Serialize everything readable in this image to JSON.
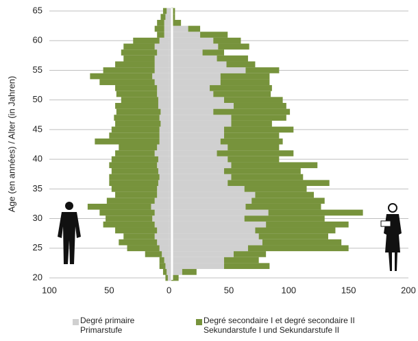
{
  "chart_data": {
    "type": "pyramid",
    "y_label": "Age (en années) / Alter (in Jahren)",
    "ages": [
      20,
      21,
      22,
      23,
      24,
      25,
      26,
      27,
      28,
      29,
      30,
      31,
      32,
      33,
      34,
      35,
      36,
      37,
      38,
      39,
      40,
      41,
      42,
      43,
      44,
      45,
      46,
      47,
      48,
      49,
      50,
      51,
      52,
      53,
      54,
      55,
      56,
      57,
      58,
      59,
      60,
      61,
      62,
      63,
      64,
      65
    ],
    "series": [
      {
        "name": "Degré primaire\nPrimarstufe",
        "color": "#d0d0d0",
        "men": [
          -1,
          -2,
          -3,
          -4,
          -6,
          -8,
          -10,
          -12,
          -10,
          -12,
          -14,
          -12,
          -15,
          -12,
          -10,
          -10,
          -9,
          -8,
          -9,
          -10,
          -9,
          -12,
          -10,
          -8,
          -8,
          -8,
          -7,
          -8,
          -7,
          -9,
          -9,
          -10,
          -10,
          -12,
          -14,
          -12,
          -12,
          -12,
          -10,
          -12,
          -8,
          -4,
          -4,
          -4,
          -3,
          -2
        ],
        "women": [
          2,
          11,
          46,
          46,
          54,
          66,
          78,
          75,
          72,
          81,
          63,
          83,
          64,
          69,
          72,
          63,
          49,
          52,
          46,
          52,
          49,
          40,
          49,
          43,
          46,
          46,
          52,
          52,
          37,
          54,
          46,
          37,
          34,
          43,
          43,
          64,
          48,
          40,
          28,
          41,
          37,
          26,
          16,
          3,
          2,
          2
        ]
      },
      {
        "name": "Degré secondaire I et degré secondaire II\nSekundarstufe I und Sekundarstufe II",
        "color": "#77933c",
        "men": [
          -2,
          -3,
          -5,
          -4,
          -14,
          -27,
          -32,
          -26,
          -35,
          -43,
          -39,
          -46,
          -53,
          -40,
          -35,
          -38,
          -41,
          -42,
          -39,
          -40,
          -39,
          -33,
          -32,
          -54,
          -42,
          -40,
          -38,
          -38,
          -37,
          -36,
          -31,
          -34,
          -35,
          -46,
          -52,
          -43,
          -33,
          -26,
          -30,
          -26,
          -22,
          -6,
          -8,
          -6,
          -4,
          -3
        ],
        "women": [
          6,
          12,
          38,
          29,
          27,
          84,
          66,
          58,
          67,
          69,
          67,
          79,
          63,
          61,
          49,
          52,
          85,
          60,
          64,
          72,
          43,
          64,
          43,
          52,
          46,
          58,
          34,
          46,
          64,
          44,
          49,
          48,
          52,
          41,
          41,
          28,
          24,
          26,
          18,
          26,
          23,
          23,
          10,
          7,
          3,
          3
        ]
      }
    ],
    "xlim": [
      -100,
      200
    ],
    "xticks": [
      {
        "value": -100,
        "label": "100"
      },
      {
        "value": -50,
        "label": "50"
      },
      0,
      50,
      100,
      150,
      200
    ],
    "ylim": [
      20,
      65
    ],
    "yticks": [
      20,
      25,
      30,
      35,
      40,
      45,
      50,
      55,
      60,
      65
    ],
    "grid": true
  }
}
